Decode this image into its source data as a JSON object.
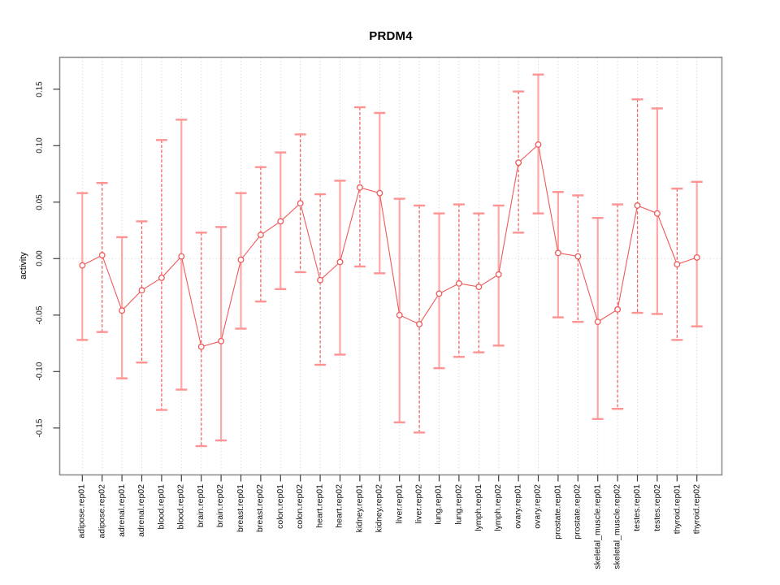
{
  "chart_data": {
    "type": "line",
    "title": "PRDM4",
    "xlabel": "",
    "ylabel": "activity",
    "ylim": [
      -0.19,
      0.18
    ],
    "grid": "vertical dotted gridline per category, dotted horizontal line at 0.00",
    "legend": "none",
    "marker": "open-circle",
    "error_bars": true,
    "yticks": [
      {
        "value": 0.15,
        "label": "0.15"
      },
      {
        "value": 0.1,
        "label": "0.10"
      },
      {
        "value": 0.05,
        "label": "0.05"
      },
      {
        "value": 0.0,
        "label": "0.00"
      },
      {
        "value": -0.05,
        "label": "-0.05"
      },
      {
        "value": -0.1,
        "label": "-0.10"
      },
      {
        "value": -0.15,
        "label": "-0.15"
      }
    ],
    "categories": [
      "adipose.rep01",
      "adipose.rep02",
      "adrenal.rep01",
      "adrenal.rep02",
      "blood.rep01",
      "blood.rep02",
      "brain.rep01",
      "brain.rep02",
      "breast.rep01",
      "breast.rep02",
      "colon.rep01",
      "colon.rep02",
      "heart.rep01",
      "heart.rep02",
      "kidney.rep01",
      "kidney.rep02",
      "liver.rep01",
      "liver.rep02",
      "lung.rep01",
      "lung.rep02",
      "lymph.rep01",
      "lymph.rep02",
      "ovary.rep01",
      "ovary.rep02",
      "prostate.rep01",
      "prostate.rep02",
      "skeletal_muscle.rep01",
      "skeletal_muscle.rep02",
      "testes.rep01",
      "testes.rep02",
      "thyroid.rep01",
      "thyroid.rep02"
    ],
    "points": [
      {
        "label": "adipose.rep01",
        "value": -0.006,
        "upper": 0.058,
        "lower": -0.072,
        "bar_style": "solid"
      },
      {
        "label": "adipose.rep02",
        "value": 0.003,
        "upper": 0.067,
        "lower": -0.065,
        "bar_style": "dashed"
      },
      {
        "label": "adrenal.rep01",
        "value": -0.046,
        "upper": 0.019,
        "lower": -0.106,
        "bar_style": "solid"
      },
      {
        "label": "adrenal.rep02",
        "value": -0.028,
        "upper": 0.033,
        "lower": -0.092,
        "bar_style": "dashed"
      },
      {
        "label": "blood.rep01",
        "value": -0.017,
        "upper": 0.105,
        "lower": -0.134,
        "bar_style": "dashed"
      },
      {
        "label": "blood.rep02",
        "value": 0.002,
        "upper": 0.123,
        "lower": -0.116,
        "bar_style": "solid"
      },
      {
        "label": "brain.rep01",
        "value": -0.078,
        "upper": 0.023,
        "lower": -0.166,
        "bar_style": "dashed"
      },
      {
        "label": "brain.rep02",
        "value": -0.073,
        "upper": 0.028,
        "lower": -0.161,
        "bar_style": "solid"
      },
      {
        "label": "breast.rep01",
        "value": -0.001,
        "upper": 0.058,
        "lower": -0.062,
        "bar_style": "solid"
      },
      {
        "label": "breast.rep02",
        "value": 0.021,
        "upper": 0.081,
        "lower": -0.038,
        "bar_style": "dashed"
      },
      {
        "label": "colon.rep01",
        "value": 0.033,
        "upper": 0.094,
        "lower": -0.027,
        "bar_style": "solid"
      },
      {
        "label": "colon.rep02",
        "value": 0.049,
        "upper": 0.11,
        "lower": -0.012,
        "bar_style": "dashed"
      },
      {
        "label": "heart.rep01",
        "value": -0.019,
        "upper": 0.057,
        "lower": -0.094,
        "bar_style": "dashed"
      },
      {
        "label": "heart.rep02",
        "value": -0.003,
        "upper": 0.069,
        "lower": -0.085,
        "bar_style": "solid"
      },
      {
        "label": "kidney.rep01",
        "value": 0.063,
        "upper": 0.134,
        "lower": -0.007,
        "bar_style": "dashed"
      },
      {
        "label": "kidney.rep02",
        "value": 0.058,
        "upper": 0.129,
        "lower": -0.013,
        "bar_style": "solid"
      },
      {
        "label": "liver.rep01",
        "value": -0.05,
        "upper": 0.053,
        "lower": -0.145,
        "bar_style": "solid"
      },
      {
        "label": "liver.rep02",
        "value": -0.058,
        "upper": 0.047,
        "lower": -0.154,
        "bar_style": "dashed"
      },
      {
        "label": "lung.rep01",
        "value": -0.031,
        "upper": 0.04,
        "lower": -0.097,
        "bar_style": "solid"
      },
      {
        "label": "lung.rep02",
        "value": -0.022,
        "upper": 0.048,
        "lower": -0.087,
        "bar_style": "dashed"
      },
      {
        "label": "lymph.rep01",
        "value": -0.025,
        "upper": 0.04,
        "lower": -0.083,
        "bar_style": "dashed"
      },
      {
        "label": "lymph.rep02",
        "value": -0.014,
        "upper": 0.047,
        "lower": -0.077,
        "bar_style": "solid"
      },
      {
        "label": "ovary.rep01",
        "value": 0.085,
        "upper": 0.148,
        "lower": 0.023,
        "bar_style": "dashed"
      },
      {
        "label": "ovary.rep02",
        "value": 0.101,
        "upper": 0.163,
        "lower": 0.04,
        "bar_style": "solid"
      },
      {
        "label": "prostate.rep01",
        "value": 0.005,
        "upper": 0.059,
        "lower": -0.052,
        "bar_style": "solid"
      },
      {
        "label": "prostate.rep02",
        "value": 0.002,
        "upper": 0.056,
        "lower": -0.056,
        "bar_style": "dashed"
      },
      {
        "label": "skeletal_muscle.rep01",
        "value": -0.056,
        "upper": 0.036,
        "lower": -0.142,
        "bar_style": "solid"
      },
      {
        "label": "skeletal_muscle.rep02",
        "value": -0.045,
        "upper": 0.048,
        "lower": -0.133,
        "bar_style": "dashed"
      },
      {
        "label": "testes.rep01",
        "value": 0.047,
        "upper": 0.141,
        "lower": -0.048,
        "bar_style": "dashed"
      },
      {
        "label": "testes.rep02",
        "value": 0.04,
        "upper": 0.133,
        "lower": -0.049,
        "bar_style": "solid"
      },
      {
        "label": "thyroid.rep01",
        "value": -0.005,
        "upper": 0.062,
        "lower": -0.072,
        "bar_style": "dashed"
      },
      {
        "label": "thyroid.rep02",
        "value": 0.001,
        "upper": 0.068,
        "lower": -0.06,
        "bar_style": "solid"
      }
    ],
    "colors": {
      "bar_solid": "#ffa6a6",
      "bar_dashed": "#ef5a5a",
      "cap": "#ff9292",
      "line": "#ef5a5a",
      "point_stroke": "#ef5a5a",
      "point_fill": "#ffffff",
      "grid": "#d8d8d8",
      "border": "#8f8f8f",
      "tick": "#3c3c3c",
      "text": "#111111"
    }
  }
}
